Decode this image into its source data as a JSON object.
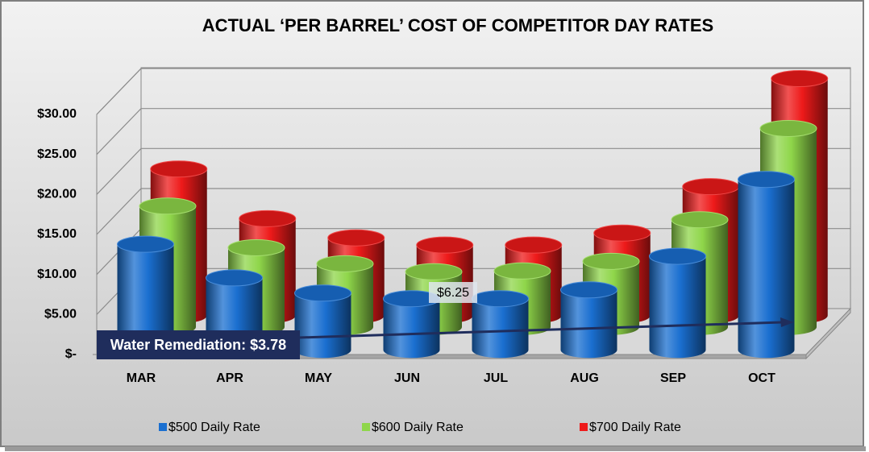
{
  "chart_data": {
    "type": "bar3d",
    "title": "ACTUAL ‘PER BARREL’ COST OF COMPETITOR DAY RATES",
    "categories": [
      "MAR",
      "APR",
      "MAY",
      "JUN",
      "JUL",
      "AUG",
      "SEP",
      "OCT"
    ],
    "series": [
      {
        "name": "$500 Daily Rate",
        "color": "#1a6fd0",
        "values": [
          13.2,
          9.0,
          7.1,
          6.4,
          6.4,
          7.5,
          11.7,
          21.3
        ]
      },
      {
        "name": "$600 Daily Rate",
        "color": "#8fd64a",
        "values": [
          15.1,
          9.9,
          7.9,
          6.9,
          7.0,
          8.2,
          13.4,
          24.8
        ]
      },
      {
        "name": "$700 Daily Rate",
        "color": "#ee1a1a",
        "values": [
          18.3,
          12.1,
          9.7,
          8.8,
          8.8,
          10.3,
          16.1,
          29.6
        ]
      }
    ],
    "ylim": [
      0,
      30
    ],
    "yticks": [
      {
        "value": 0,
        "label": "$-"
      },
      {
        "value": 5,
        "label": "$5.00"
      },
      {
        "value": 10,
        "label": "$10.00"
      },
      {
        "value": 15,
        "label": "$15.00"
      },
      {
        "value": 20,
        "label": "$20.00"
      },
      {
        "value": 25,
        "label": "$25.00"
      },
      {
        "value": 30,
        "label": "$30.00"
      }
    ],
    "grid": true,
    "legend": "bottom",
    "annotations": [
      {
        "text": "Water Remediation: $3.78"
      },
      {
        "text": "$6.25"
      }
    ]
  }
}
